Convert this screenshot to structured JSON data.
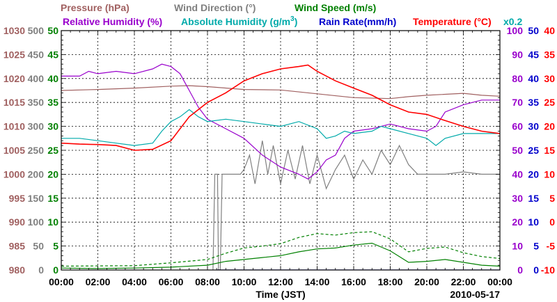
{
  "chart_data": {
    "type": "line",
    "title": "",
    "date_label": "2010-05-17",
    "xlabel": "Time (JST)",
    "x_ticks": [
      "00:00",
      "02:00",
      "04:00",
      "06:00",
      "08:00",
      "10:00",
      "12:00",
      "14:00",
      "16:00",
      "18:00",
      "20:00",
      "22:00",
      "00:00"
    ],
    "x_range_hours": [
      0,
      24
    ],
    "legend_row1": [
      {
        "text": "Pressure (hPa)",
        "color": "#a06060"
      },
      {
        "text": "Wind Direction (°)",
        "color": "#808080"
      },
      {
        "text": "Wind Speed (m/s)",
        "color": "#008000"
      }
    ],
    "legend_row2": [
      {
        "text": "Relative Humidity (%)",
        "color": "#9900cc"
      },
      {
        "text": "Absolute Humidity (g/m",
        "sup": "3",
        "tail": ")",
        "color": "#00aaaa"
      },
      {
        "text": "Rain Rate(mm/h)",
        "color": "#0000cc"
      },
      {
        "text": "Temperature (°C)",
        "color": "#ff0000"
      },
      {
        "text": "x0.2",
        "color": "#00aaaa"
      }
    ],
    "axes": {
      "pressure": {
        "color": "#a06060",
        "min": 980,
        "max": 1030,
        "ticks": [
          "980",
          "985",
          "990",
          "995",
          "1000",
          "1005",
          "1010",
          "1015",
          "1020",
          "1025",
          "1030"
        ]
      },
      "wind_direction": {
        "color": "#808080",
        "min": 0,
        "max": 500,
        "ticks": [
          "0",
          "50",
          "100",
          "150",
          "200",
          "250",
          "300",
          "350",
          "400",
          "450",
          "500"
        ]
      },
      "wind_speed": {
        "color": "#008000",
        "min": 0,
        "max": 50,
        "ticks": [
          "0",
          "5",
          "10",
          "15",
          "20",
          "25",
          "30",
          "35",
          "40",
          "45",
          "50"
        ]
      },
      "relative_humidity": {
        "color": "#9900cc",
        "min": 0,
        "max": 100,
        "ticks": [
          "0",
          "10",
          "20",
          "30",
          "40",
          "50",
          "60",
          "70",
          "80",
          "90",
          "100"
        ]
      },
      "rain_rate": {
        "color": "#0000cc",
        "min": 0,
        "max": 50,
        "ticks": [
          "0",
          "5",
          "10",
          "15",
          "20",
          "25",
          "30",
          "35",
          "40",
          "45",
          "50"
        ]
      },
      "temperature": {
        "color": "#ff0000",
        "min": -10,
        "max": 40,
        "ticks": [
          "-10",
          "-5",
          "0",
          "5",
          "10",
          "15",
          "20",
          "25",
          "30",
          "35",
          "40"
        ]
      }
    },
    "series": [
      {
        "name": "Pressure",
        "axis": "pressure",
        "color": "#a06060",
        "points": [
          [
            0,
            1017.5
          ],
          [
            2,
            1017.7
          ],
          [
            4,
            1018.0
          ],
          [
            6,
            1018.4
          ],
          [
            7,
            1018.5
          ],
          [
            8,
            1018.3
          ],
          [
            10,
            1017.7
          ],
          [
            12,
            1017.6
          ],
          [
            14,
            1016.8
          ],
          [
            16,
            1016.0
          ],
          [
            18,
            1015.8
          ],
          [
            19,
            1016.2
          ],
          [
            20,
            1016.5
          ],
          [
            22,
            1016.9
          ],
          [
            23,
            1016.5
          ],
          [
            24,
            1016.3
          ]
        ]
      },
      {
        "name": "Wind Direction",
        "axis": "wind_direction",
        "color": "#808080",
        "points": [
          [
            8.3,
            0
          ],
          [
            8.4,
            200
          ],
          [
            8.55,
            200
          ],
          [
            8.6,
            0
          ],
          [
            8.7,
            0
          ],
          [
            8.8,
            200
          ],
          [
            9.8,
            200
          ],
          [
            10.0,
            210
          ],
          [
            10.3,
            240
          ],
          [
            10.6,
            180
          ],
          [
            11.0,
            270
          ],
          [
            11.3,
            200
          ],
          [
            11.6,
            260
          ],
          [
            12.0,
            180
          ],
          [
            12.4,
            250
          ],
          [
            12.8,
            190
          ],
          [
            13.2,
            260
          ],
          [
            13.6,
            180
          ],
          [
            14.0,
            240
          ],
          [
            14.5,
            170
          ],
          [
            15.0,
            210
          ],
          [
            15.5,
            240
          ],
          [
            16.0,
            190
          ],
          [
            16.5,
            230
          ],
          [
            17.0,
            200
          ],
          [
            17.5,
            250
          ],
          [
            18.0,
            220
          ],
          [
            18.5,
            260
          ],
          [
            19.0,
            220
          ],
          [
            19.5,
            200
          ],
          [
            20.0,
            200
          ],
          [
            21.0,
            200
          ],
          [
            22.0,
            205
          ],
          [
            23.0,
            200
          ],
          [
            24.0,
            200
          ]
        ]
      },
      {
        "name": "Wind Speed (mean)",
        "axis": "wind_speed",
        "color": "#008000",
        "points": [
          [
            0,
            0.4
          ],
          [
            2,
            0.3
          ],
          [
            4,
            0.4
          ],
          [
            6,
            0.6
          ],
          [
            8,
            1.0
          ],
          [
            9,
            1.8
          ],
          [
            10,
            2.2
          ],
          [
            11,
            2.6
          ],
          [
            12,
            3.0
          ],
          [
            13,
            3.8
          ],
          [
            14,
            4.4
          ],
          [
            15,
            4.6
          ],
          [
            16,
            5.2
          ],
          [
            17,
            5.6
          ],
          [
            18,
            4.0
          ],
          [
            19,
            1.6
          ],
          [
            20,
            1.8
          ],
          [
            21,
            2.2
          ],
          [
            22,
            1.6
          ],
          [
            23,
            1.0
          ],
          [
            24,
            0.8
          ]
        ]
      },
      {
        "name": "Wind Speed (gust)",
        "axis": "wind_speed",
        "color": "#008000",
        "dashed": true,
        "points": [
          [
            0,
            0.8
          ],
          [
            4,
            0.9
          ],
          [
            6,
            1.5
          ],
          [
            8,
            2.2
          ],
          [
            9,
            3.5
          ],
          [
            10,
            4.6
          ],
          [
            11,
            5.0
          ],
          [
            12,
            5.5
          ],
          [
            13,
            6.8
          ],
          [
            14,
            7.6
          ],
          [
            15,
            7.3
          ],
          [
            16,
            7.8
          ],
          [
            17,
            8.0
          ],
          [
            18,
            6.5
          ],
          [
            19,
            3.8
          ],
          [
            20,
            4.5
          ],
          [
            21,
            4.8
          ],
          [
            22,
            3.6
          ],
          [
            23,
            2.8
          ],
          [
            24,
            2.4
          ]
        ]
      },
      {
        "name": "Relative Humidity",
        "axis": "relative_humidity",
        "color": "#9900cc",
        "points": [
          [
            0,
            81
          ],
          [
            1,
            81
          ],
          [
            1.5,
            83
          ],
          [
            2,
            82
          ],
          [
            3,
            83
          ],
          [
            4,
            82
          ],
          [
            5,
            84
          ],
          [
            5.5,
            86
          ],
          [
            6,
            85
          ],
          [
            6.5,
            82
          ],
          [
            7,
            75
          ],
          [
            7.5,
            68
          ],
          [
            8,
            63
          ],
          [
            9,
            59
          ],
          [
            10,
            55
          ],
          [
            11,
            48
          ],
          [
            12,
            43
          ],
          [
            13,
            40
          ],
          [
            13.5,
            38
          ],
          [
            14,
            41
          ],
          [
            14.5,
            46
          ],
          [
            15,
            48
          ],
          [
            15.5,
            55
          ],
          [
            16,
            58
          ],
          [
            17,
            59
          ],
          [
            17.5,
            60
          ],
          [
            18,
            61
          ],
          [
            19,
            59
          ],
          [
            20,
            58
          ],
          [
            20.5,
            60
          ],
          [
            21,
            66
          ],
          [
            22,
            69
          ],
          [
            23,
            71
          ],
          [
            24,
            71
          ]
        ]
      },
      {
        "name": "Absolute Humidity (x0.2)",
        "axis": "relative_humidity",
        "color": "#00aaaa",
        "points": [
          [
            0,
            55
          ],
          [
            1,
            55
          ],
          [
            2,
            54
          ],
          [
            3,
            53
          ],
          [
            4,
            52
          ],
          [
            5,
            53
          ],
          [
            5.5,
            58
          ],
          [
            6,
            62
          ],
          [
            6.5,
            64
          ],
          [
            7,
            67
          ],
          [
            7.5,
            64
          ],
          [
            8,
            62
          ],
          [
            9,
            63
          ],
          [
            10,
            62
          ],
          [
            11,
            61
          ],
          [
            12,
            60
          ],
          [
            13,
            62
          ],
          [
            14,
            59
          ],
          [
            14.5,
            55
          ],
          [
            15,
            56
          ],
          [
            15.5,
            58
          ],
          [
            16,
            57
          ],
          [
            17,
            58
          ],
          [
            17.5,
            60
          ],
          [
            18,
            59
          ],
          [
            19,
            57
          ],
          [
            20,
            55
          ],
          [
            20.5,
            52
          ],
          [
            21,
            55
          ],
          [
            22,
            57
          ],
          [
            23,
            57
          ],
          [
            24,
            57
          ]
        ]
      },
      {
        "name": "Temperature",
        "axis": "temperature",
        "color": "#ff0000",
        "points": [
          [
            0,
            16.5
          ],
          [
            1,
            16.3
          ],
          [
            2,
            16.2
          ],
          [
            3,
            16.0
          ],
          [
            4,
            15.0
          ],
          [
            5,
            15.2
          ],
          [
            6,
            17.0
          ],
          [
            7,
            22.0
          ],
          [
            8,
            25.0
          ],
          [
            9,
            27.0
          ],
          [
            10,
            29.5
          ],
          [
            11,
            31.0
          ],
          [
            12,
            32.0
          ],
          [
            13,
            32.5
          ],
          [
            13.5,
            32.8
          ],
          [
            14,
            31.5
          ],
          [
            15,
            29.5
          ],
          [
            16,
            28.0
          ],
          [
            17,
            26.5
          ],
          [
            18,
            24.5
          ],
          [
            19,
            23.0
          ],
          [
            20,
            22.5
          ],
          [
            21,
            21.2
          ],
          [
            22,
            20.0
          ],
          [
            23,
            19.0
          ],
          [
            24,
            18.5
          ]
        ]
      },
      {
        "name": "Rain Rate",
        "axis": "rain_rate",
        "color": "#0000cc",
        "points": [
          [
            8.5,
            0
          ],
          [
            24,
            0
          ]
        ]
      }
    ]
  }
}
